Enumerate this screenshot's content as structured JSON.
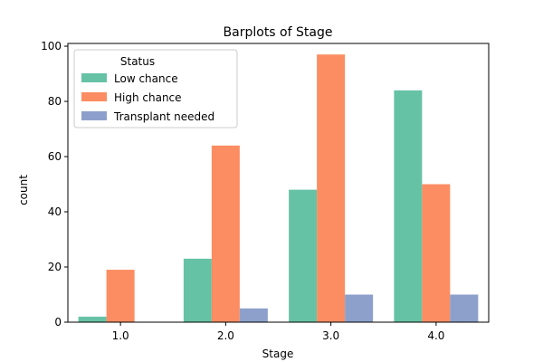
{
  "chart_data": {
    "type": "bar",
    "title": "Barplots of Stage",
    "xlabel": "Stage",
    "ylabel": "count",
    "categories": [
      "1.0",
      "2.0",
      "3.0",
      "4.0"
    ],
    "ylim": [
      0,
      101
    ],
    "yticks": [
      0,
      20,
      40,
      60,
      80,
      100
    ],
    "grid": false,
    "legend": {
      "title": "Status",
      "placement": "top-left"
    },
    "series": [
      {
        "name": "Low chance",
        "color": "#66c2a5",
        "values": [
          2,
          23,
          48,
          84
        ]
      },
      {
        "name": "High chance",
        "color": "#fc8d62",
        "values": [
          19,
          64,
          97,
          50
        ]
      },
      {
        "name": "Transplant needed",
        "color": "#8da0cb",
        "values": [
          0,
          5,
          10,
          10
        ]
      }
    ]
  }
}
